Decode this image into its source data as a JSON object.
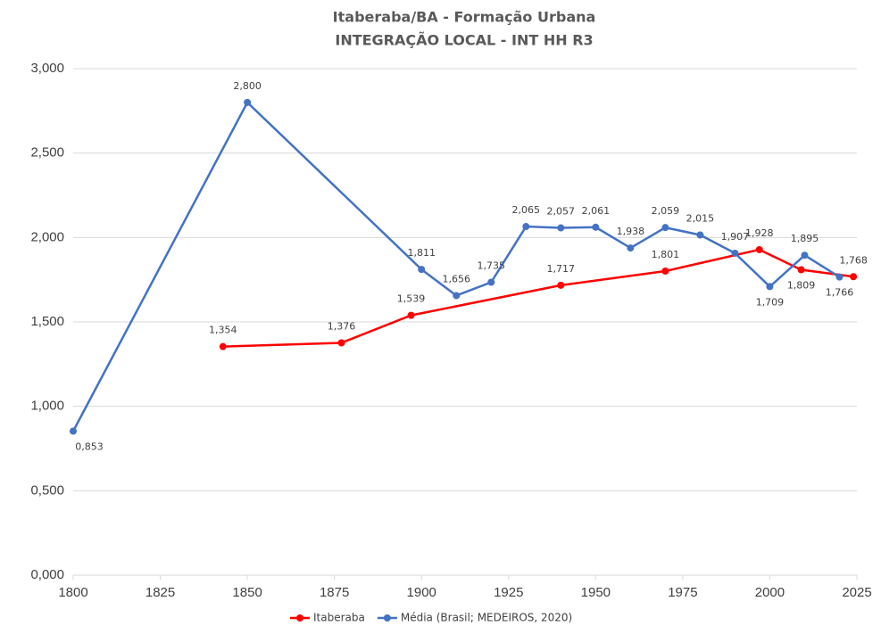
{
  "chart_data": {
    "type": "line",
    "title": "Itaberaba/BA - Formação Urbana",
    "subtitle": "INTEGRAÇÃO LOCAL - INT HH R3",
    "xlim": [
      1800,
      2025
    ],
    "xticks": [
      1800,
      1825,
      1850,
      1875,
      1900,
      1925,
      1950,
      1975,
      2000,
      2025
    ],
    "ylim": [
      0,
      3
    ],
    "yticks": [
      {
        "value": 0,
        "label": "0,000"
      },
      {
        "value": 0.5,
        "label": "0,500"
      },
      {
        "value": 1,
        "label": "1,000"
      },
      {
        "value": 1.5,
        "label": "1,500"
      },
      {
        "value": 2,
        "label": "2,000"
      },
      {
        "value": 2.5,
        "label": "2,500"
      },
      {
        "value": 3,
        "label": "3,000"
      }
    ],
    "grid": true,
    "legend": "bottom",
    "series": [
      {
        "name": "Itaberaba",
        "color": "#ff0000",
        "x": [
          1843,
          1877,
          1897,
          1940,
          1970,
          1997,
          2009,
          2024
        ],
        "values": [
          1.354,
          1.376,
          1.539,
          1.717,
          1.801,
          1.928,
          1.809,
          1.768
        ],
        "value_labels": [
          "1,354",
          "1,376",
          "1,539",
          "1,717",
          "1,801",
          "1,928",
          "1,809",
          "1,768"
        ]
      },
      {
        "name": "Média (Brasil; MEDEIROS, 2020)",
        "color": "#4472c4",
        "x": [
          1800,
          1850,
          1900,
          1910,
          1920,
          1930,
          1940,
          1950,
          1960,
          1970,
          1980,
          1990,
          2000,
          2010,
          2020
        ],
        "values": [
          0.853,
          2.8,
          1.811,
          1.656,
          1.735,
          2.065,
          2.057,
          2.061,
          1.938,
          2.059,
          2.015,
          1.907,
          1.709,
          1.895,
          1.766
        ],
        "value_labels": [
          "0,853",
          "2,800",
          "1,811",
          "1,656",
          "1,735",
          "2,065",
          "2,057",
          "2,061",
          "1,938",
          "2,059",
          "2,015",
          "1,907",
          "1,709",
          "1,895",
          "1,766"
        ]
      }
    ]
  }
}
